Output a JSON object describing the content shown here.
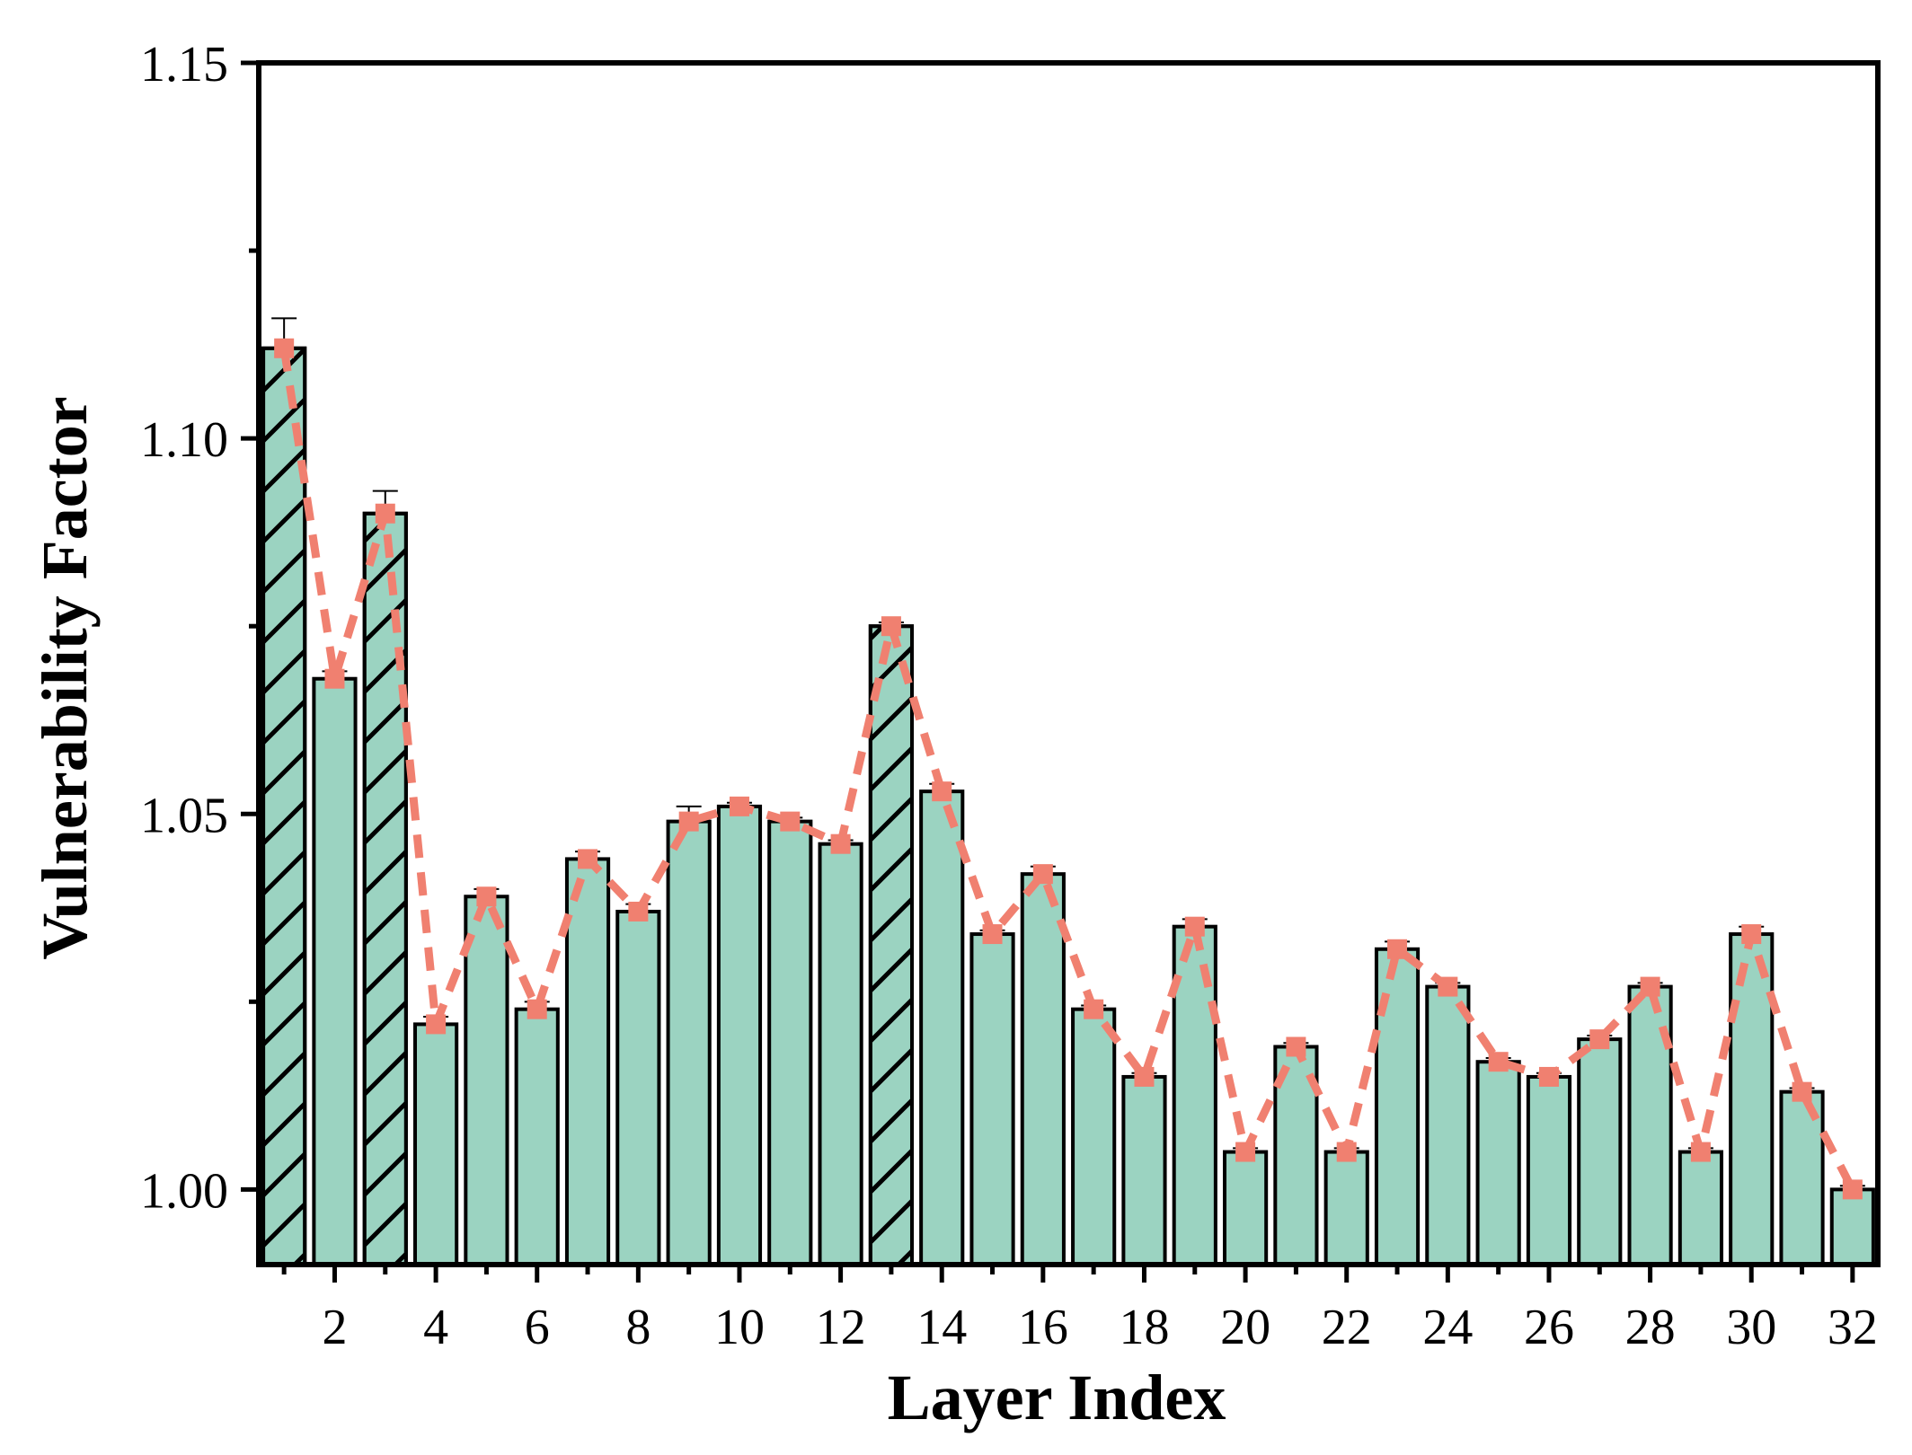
{
  "chart_data": {
    "type": "bar",
    "title": "",
    "xlabel": "Layer Index",
    "ylabel": "Vulnerability Factor",
    "categories": [
      1,
      2,
      3,
      4,
      5,
      6,
      7,
      8,
      9,
      10,
      11,
      12,
      13,
      14,
      15,
      16,
      17,
      18,
      19,
      20,
      21,
      22,
      23,
      24,
      25,
      26,
      27,
      28,
      29,
      30,
      31,
      32
    ],
    "x_tick_labels": [
      "2",
      "4",
      "6",
      "8",
      "10",
      "12",
      "14",
      "16",
      "18",
      "20",
      "22",
      "24",
      "26",
      "28",
      "30",
      "32"
    ],
    "y_tick_labels": [
      "1.00",
      "1.05",
      "1.10",
      "1.15"
    ],
    "ylim": [
      0.99,
      1.15
    ],
    "values": [
      1.112,
      1.068,
      1.09,
      1.022,
      1.039,
      1.024,
      1.044,
      1.037,
      1.049,
      1.051,
      1.049,
      1.046,
      1.075,
      1.053,
      1.034,
      1.042,
      1.024,
      1.015,
      1.035,
      1.005,
      1.019,
      1.005,
      1.032,
      1.027,
      1.017,
      1.015,
      1.02,
      1.027,
      1.005,
      1.034,
      1.013,
      1.0
    ],
    "errors": [
      0.004,
      0.001,
      0.003,
      0.001,
      0.001,
      0.001,
      0.001,
      0.001,
      0.002,
      0.0005,
      0.0005,
      0.0005,
      0.0005,
      0.001,
      0.0005,
      0.001,
      0.0005,
      0.0005,
      0.001,
      0.0005,
      0.0005,
      0.0005,
      0.001,
      0.0005,
      0.0005,
      0.0005,
      0.0005,
      0.0005,
      0.0005,
      0.001,
      0.0005,
      0.0005
    ],
    "hatched_layers": [
      1,
      3,
      13
    ],
    "overlay_line": {
      "style": "dashed",
      "marker": "square",
      "values": [
        1.112,
        1.068,
        1.09,
        1.022,
        1.039,
        1.024,
        1.044,
        1.037,
        1.049,
        1.051,
        1.049,
        1.046,
        1.075,
        1.053,
        1.034,
        1.042,
        1.024,
        1.015,
        1.035,
        1.005,
        1.019,
        1.005,
        1.032,
        1.027,
        1.017,
        1.015,
        1.02,
        1.027,
        1.005,
        1.034,
        1.013,
        1.0
      ]
    },
    "grid": false,
    "colors": {
      "bar_fill": "#9bd3c1",
      "bar_edge": "#000000",
      "line": "#f08070",
      "axis": "#000000"
    }
  }
}
